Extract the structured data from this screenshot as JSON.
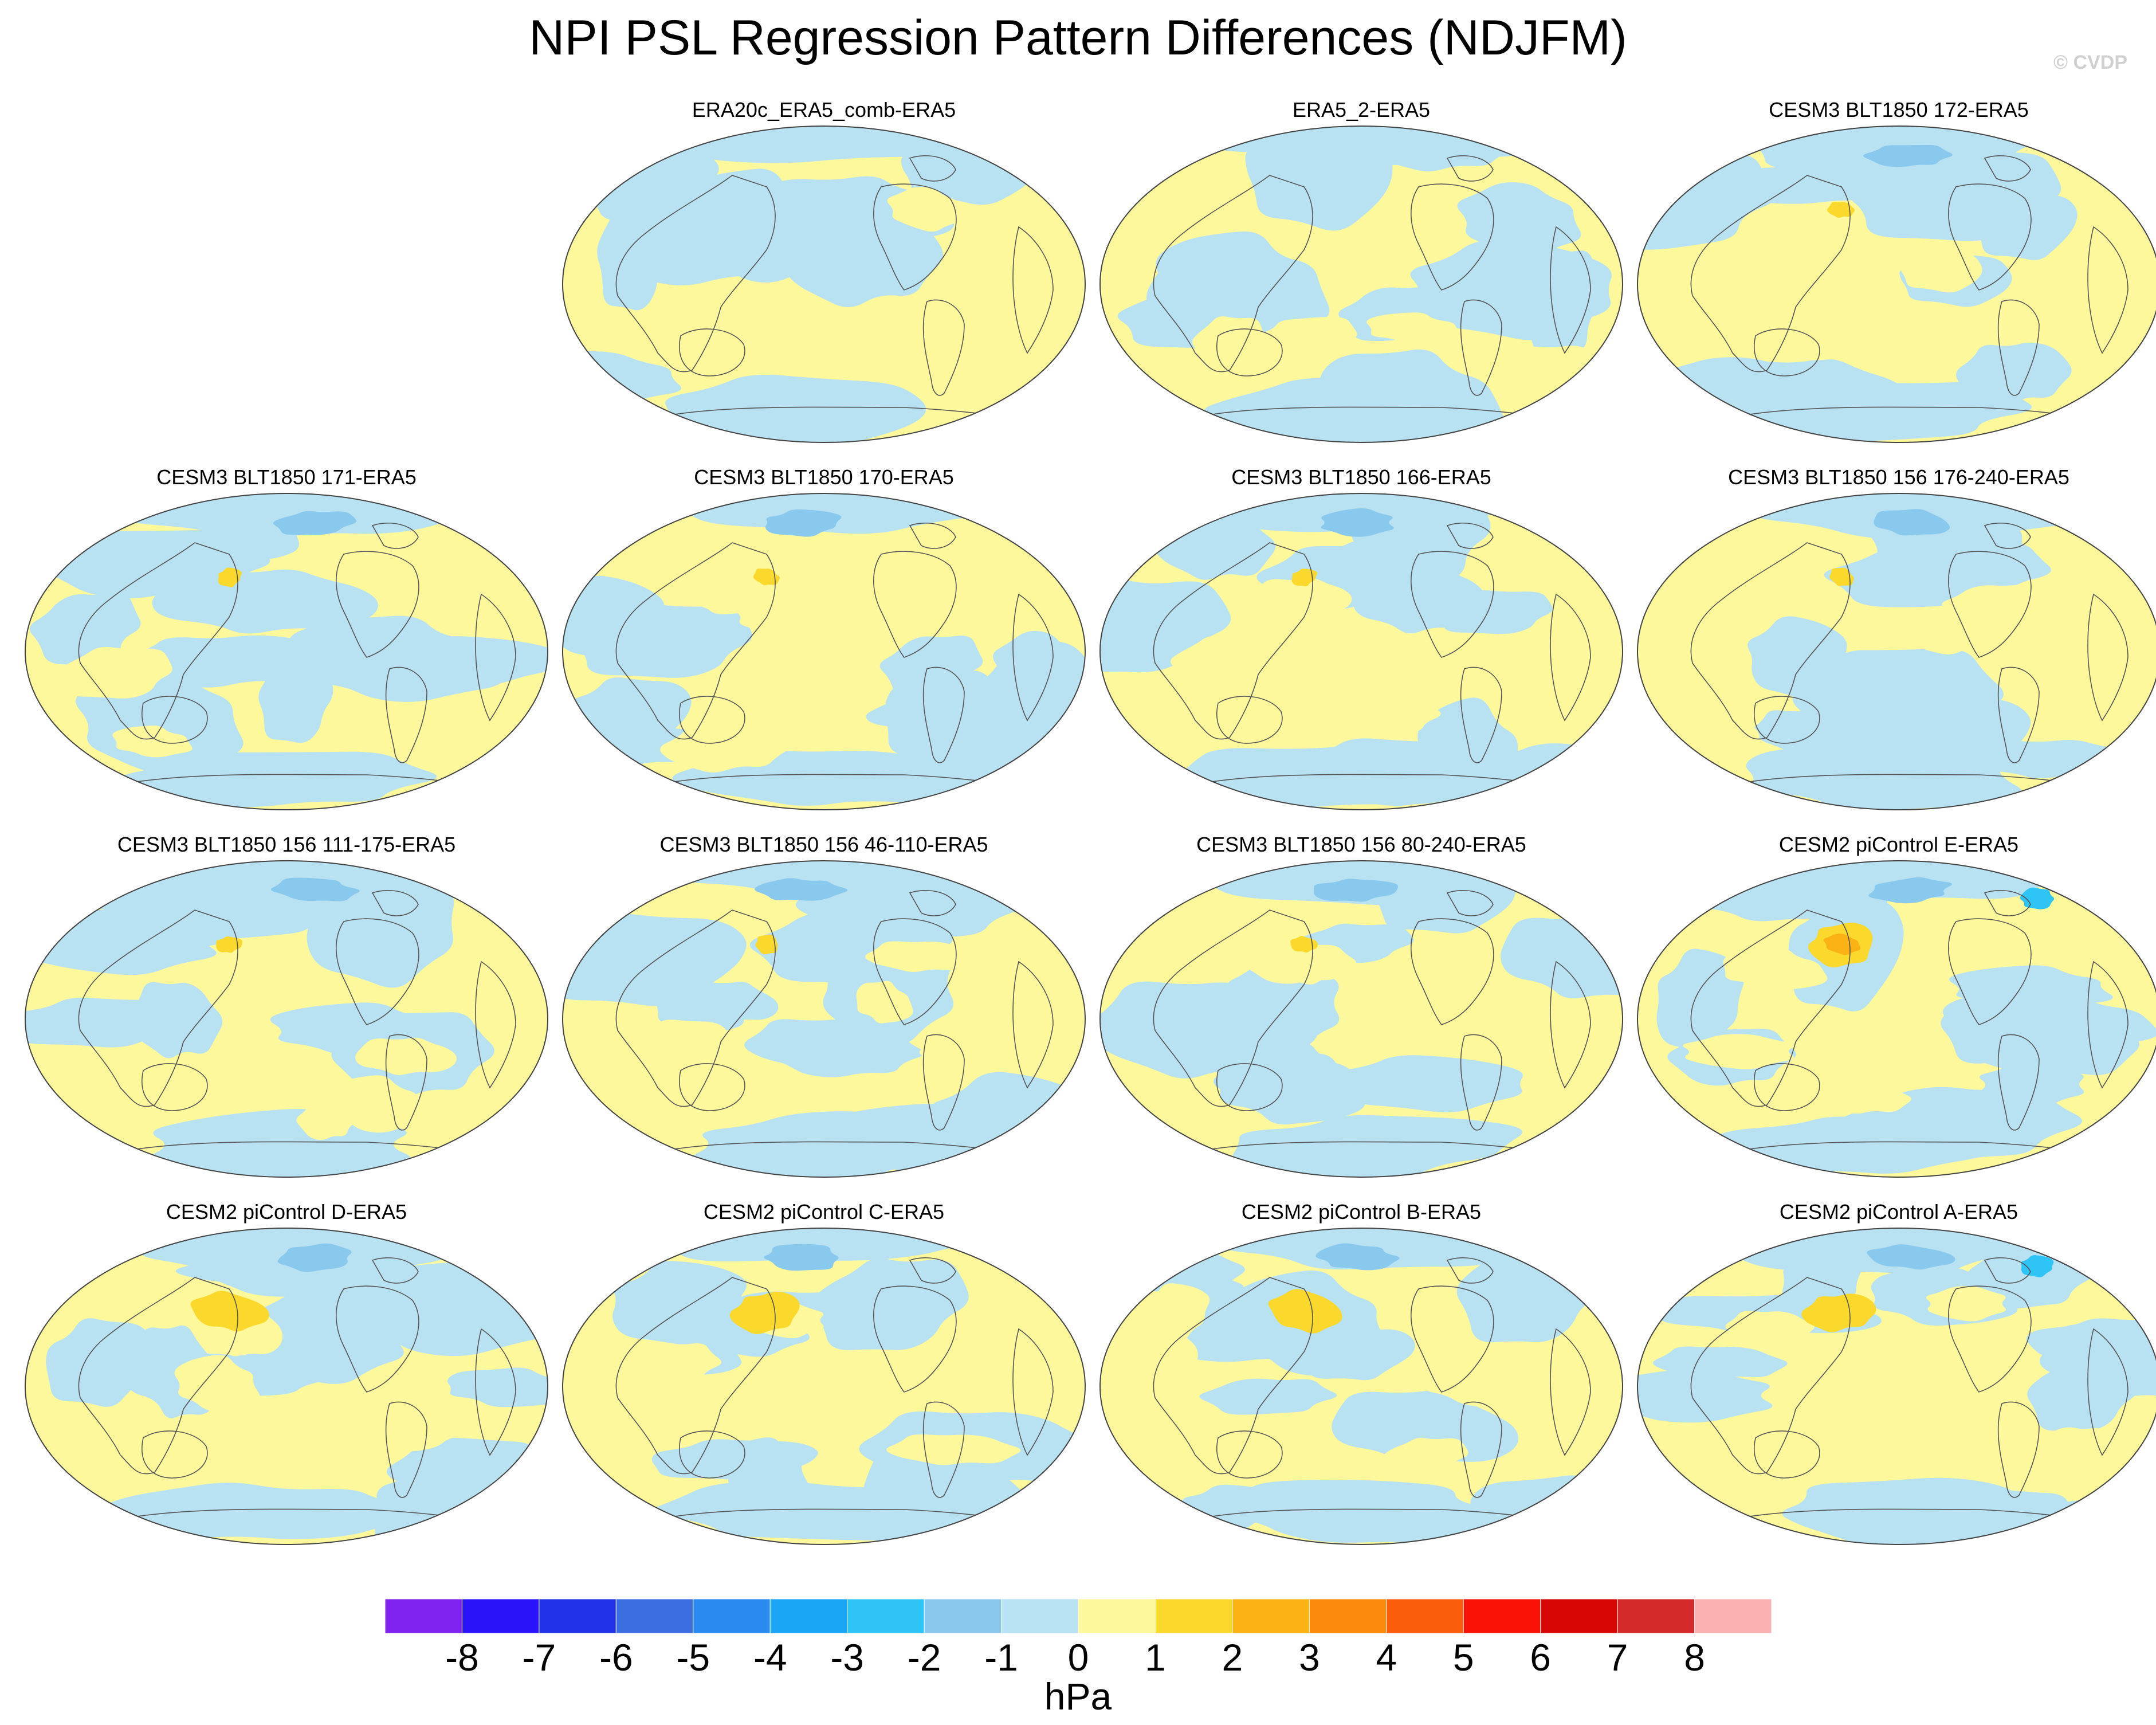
{
  "title": "NPI PSL Regression Pattern Differences (NDJFM)",
  "credit": "© CVDP",
  "panels": [
    {
      "label": "ERA20c_ERA5_comb-ERA5",
      "variant": 0
    },
    {
      "label": "ERA5_2-ERA5",
      "variant": 1
    },
    {
      "label": "CESM3 BLT1850 172-ERA5",
      "variant": 2
    },
    {
      "label": "CESM3 BLT1850 171-ERA5",
      "variant": 3
    },
    {
      "label": "CESM3 BLT1850 170-ERA5",
      "variant": 4
    },
    {
      "label": "CESM3 BLT1850 166-ERA5",
      "variant": 5
    },
    {
      "label": "CESM3 BLT1850 156 176-240-ERA5",
      "variant": 6
    },
    {
      "label": "CESM3 BLT1850 156 111-175-ERA5",
      "variant": 7
    },
    {
      "label": "CESM3 BLT1850 156 46-110-ERA5",
      "variant": 8
    },
    {
      "label": "CESM3 BLT1850 156 80-240-ERA5",
      "variant": 9
    },
    {
      "label": "CESM2 piControl E-ERA5",
      "variant": 10
    },
    {
      "label": "CESM2 piControl D-ERA5",
      "variant": 11
    },
    {
      "label": "CESM2 piControl C-ERA5",
      "variant": 12
    },
    {
      "label": "CESM2 piControl B-ERA5",
      "variant": 13
    },
    {
      "label": "CESM2 piControl A-ERA5",
      "variant": 14
    }
  ],
  "colorbar": {
    "colors": [
      "#8022f0",
      "#2a13fb",
      "#2131e8",
      "#3b6ee0",
      "#2b8af0",
      "#1ba5f5",
      "#2ec4f5",
      "#8ac9ee",
      "#b8e1f2",
      "#fdf89c",
      "#fbd82c",
      "#fbb214",
      "#fc8a0b",
      "#fb5c0b",
      "#fa1106",
      "#d70706",
      "#d52a2a",
      "#fcb1b1"
    ],
    "ticks": [
      "-8",
      "-7",
      "-6",
      "-5",
      "-4",
      "-3",
      "-2",
      "-1",
      "0",
      "1",
      "2",
      "3",
      "4",
      "5",
      "6",
      "7",
      "8"
    ],
    "units": "hPa"
  },
  "palette": {
    "neg": "#b8e1f2",
    "pos": "#fdf89c",
    "pos2": "#fbd82c",
    "pos3": "#fbb214",
    "neg2": "#8ac9ee",
    "neg3": "#2ec4f5",
    "coast": "#555555"
  }
}
